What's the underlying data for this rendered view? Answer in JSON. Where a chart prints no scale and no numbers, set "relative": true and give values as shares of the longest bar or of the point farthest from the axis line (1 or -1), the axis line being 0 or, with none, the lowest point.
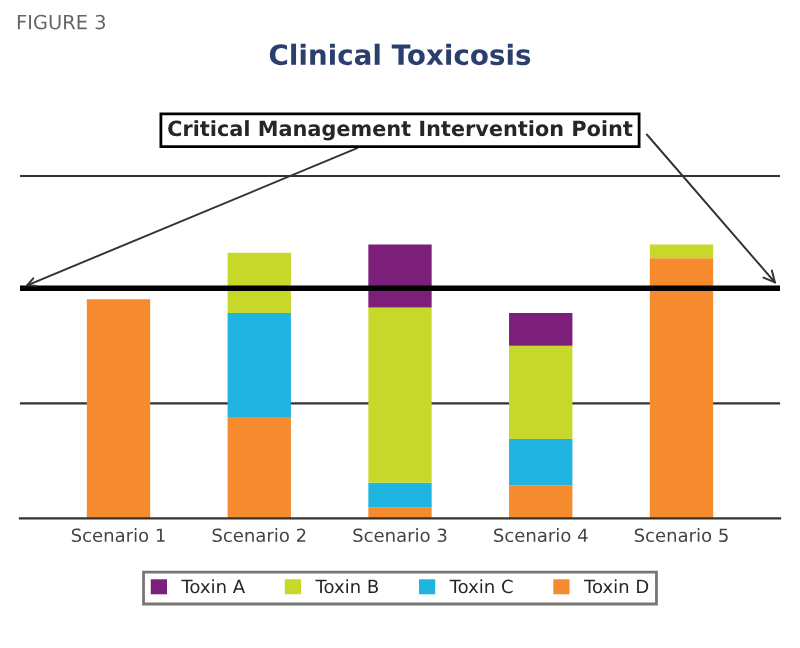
{
  "chart_data": {
    "type": "bar",
    "title": "Clinical Toxicosis",
    "annotations": [
      "FIGURE 3"
    ],
    "categories": [
      "Scenario 1",
      "Scenario 2",
      "Scenario 3",
      "Scenario 4",
      "Scenario 5"
    ],
    "stacked": true,
    "relative": true,
    "legend": "bottom",
    "series": [
      {
        "name": "Toxin D",
        "color": "#f58a2e",
        "values": [
          0.8,
          0.37,
          0.04,
          0.12,
          0.95
        ]
      },
      {
        "name": "Toxin C",
        "color": "#20b4e0",
        "values": [
          null,
          0.38,
          0.09,
          0.17,
          null
        ]
      },
      {
        "name": "Toxin B",
        "color": "#c8d82a",
        "values": [
          null,
          0.22,
          0.64,
          0.34,
          0.05
        ]
      },
      {
        "name": "Toxin A",
        "color": "#7b1f7a",
        "values": [
          null,
          null,
          0.23,
          0.12,
          null
        ]
      }
    ],
    "ref_lines": [
      {
        "axis": "y",
        "value": 0.84,
        "label": "Critical Management Intervention Point",
        "color": "#000000"
      },
      {
        "axis": "y",
        "value": 0.42,
        "color": "#333333"
      },
      {
        "axis": "y",
        "value": 1.25,
        "color": "#333333"
      }
    ]
  }
}
